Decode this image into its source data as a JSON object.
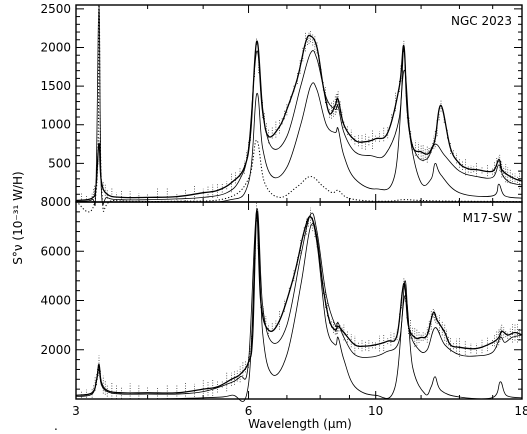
{
  "chart_data": [
    {
      "type": "line",
      "panel": "top",
      "label": "NGC 2023",
      "xscale": "log",
      "xlim": [
        3,
        18
      ],
      "ylim": [
        0,
        2550
      ],
      "yticks": [
        500,
        1000,
        1500,
        2000,
        2500
      ],
      "series": [
        {
          "style": "observed (thick solid)",
          "x": [
            3.0,
            3.2,
            3.25,
            3.29,
            3.32,
            3.4,
            3.6,
            4.0,
            4.5,
            5.0,
            5.3,
            5.6,
            5.9,
            6.05,
            6.2,
            6.35,
            6.5,
            6.8,
            7.0,
            7.3,
            7.55,
            7.7,
            7.9,
            8.1,
            8.3,
            8.5,
            8.6,
            8.8,
            9.2,
            9.6,
            10.0,
            10.5,
            11.0,
            11.2,
            11.35,
            11.6,
            12.0,
            12.3,
            12.5,
            12.7,
            13.0,
            13.5,
            14.0,
            14.5,
            15.0,
            16.0,
            16.4,
            16.6,
            17.0,
            17.5,
            18.0
          ],
          "y": [
            20,
            50,
            200,
            760,
            280,
            100,
            60,
            60,
            70,
            120,
            150,
            250,
            450,
            900,
            2080,
            1200,
            850,
            980,
            1200,
            1600,
            2070,
            2150,
            2000,
            1500,
            1150,
            1250,
            1330,
            1000,
            800,
            780,
            820,
            900,
            1500,
            2020,
            1200,
            720,
            650,
            620,
            680,
            820,
            1250,
            700,
            500,
            430,
            420,
            400,
            550,
            420,
            350,
            300,
            270
          ]
        },
        {
          "style": "model total (thin solid)",
          "x": [
            3.0,
            3.2,
            3.25,
            3.29,
            3.32,
            3.4,
            3.6,
            4.0,
            4.5,
            5.0,
            5.5,
            5.8,
            6.0,
            6.2,
            6.35,
            6.6,
            7.0,
            7.4,
            7.7,
            7.9,
            8.2,
            8.5,
            8.6,
            8.8,
            9.2,
            9.8,
            10.4,
            11.0,
            11.2,
            11.4,
            11.8,
            12.3,
            12.7,
            13.2,
            14.0,
            15.0,
            16.0,
            16.4,
            16.7,
            17.2,
            18.0
          ],
          "y": [
            10,
            30,
            200,
            2550,
            200,
            60,
            30,
            30,
            40,
            60,
            120,
            300,
            700,
            1950,
            1150,
            700,
            850,
            1500,
            1930,
            1850,
            1350,
            1200,
            1240,
            900,
            650,
            600,
            620,
            1100,
            1980,
            1000,
            600,
            560,
            750,
            600,
            400,
            330,
            320,
            480,
            330,
            250,
            220
          ]
        },
        {
          "style": "component (thin solid, lower)",
          "x": [
            3.0,
            3.29,
            3.32,
            3.6,
            4.5,
            5.5,
            6.0,
            6.2,
            6.35,
            6.6,
            7.0,
            7.4,
            7.7,
            7.9,
            8.2,
            8.5,
            8.6,
            8.8,
            9.2,
            10.0,
            10.8,
            11.2,
            11.5,
            12.0,
            12.5,
            12.7,
            13.0,
            14.0,
            16.0,
            16.4,
            16.8,
            18.0
          ],
          "y": [
            0,
            0,
            0,
            0,
            5,
            20,
            250,
            1400,
            700,
            330,
            450,
            1000,
            1500,
            1450,
            1000,
            900,
            950,
            600,
            300,
            170,
            350,
            1700,
            800,
            250,
            300,
            500,
            350,
            120,
            80,
            230,
            80,
            50
          ]
        },
        {
          "style": "component (dotted)",
          "x": [
            3.0,
            3.25,
            3.29,
            3.33,
            3.5,
            4.5,
            5.5,
            6.0,
            6.2,
            6.4,
            6.8,
            7.3,
            7.7,
            8.1,
            8.4,
            8.6,
            8.9,
            9.5,
            10.5,
            11.2,
            12.0,
            14.0,
            18.0
          ],
          "y": [
            0,
            100,
            2550,
            100,
            20,
            10,
            50,
            300,
            800,
            250,
            60,
            200,
            330,
            200,
            120,
            150,
            60,
            20,
            10,
            30,
            20,
            10,
            5
          ]
        }
      ]
    },
    {
      "type": "line",
      "panel": "bottom",
      "label": "M17-SW",
      "xscale": "log",
      "xlim": [
        3,
        18
      ],
      "ylim": [
        0,
        8000
      ],
      "yticks": [
        2000,
        4000,
        6000,
        8000
      ],
      "series": [
        {
          "style": "observed (thick solid)",
          "x": [
            3.0,
            3.2,
            3.26,
            3.29,
            3.32,
            3.4,
            3.6,
            4.0,
            4.5,
            5.0,
            5.3,
            5.6,
            5.8,
            6.0,
            6.1,
            6.2,
            6.3,
            6.5,
            6.8,
            7.2,
            7.5,
            7.7,
            7.9,
            8.1,
            8.3,
            8.5,
            8.6,
            8.8,
            9.2,
            9.6,
            10.0,
            10.5,
            10.9,
            11.2,
            11.4,
            11.7,
            12.0,
            12.3,
            12.6,
            12.8,
            13.2,
            13.5,
            14.0,
            15.0,
            16.0,
            16.4,
            16.6,
            17.0,
            17.5,
            18.0
          ],
          "y": [
            150,
            250,
            800,
            1400,
            700,
            350,
            250,
            250,
            250,
            400,
            500,
            800,
            1000,
            1500,
            2600,
            7600,
            4000,
            2800,
            3200,
            5000,
            6800,
            7400,
            6500,
            4500,
            3200,
            2800,
            2950,
            2700,
            2200,
            2150,
            2200,
            2350,
            2600,
            4700,
            3000,
            2500,
            2500,
            2600,
            3500,
            3200,
            2700,
            2200,
            2100,
            2050,
            2300,
            2500,
            2750,
            2600,
            2700,
            2600
          ]
        },
        {
          "style": "model total (thin solid)",
          "x": [
            3.0,
            3.2,
            3.26,
            3.29,
            3.32,
            3.4,
            3.6,
            4.0,
            4.5,
            5.0,
            5.5,
            5.8,
            6.0,
            6.2,
            6.35,
            6.6,
            7.0,
            7.4,
            7.7,
            7.9,
            8.2,
            8.5,
            8.6,
            8.8,
            9.2,
            9.8,
            10.4,
            11.0,
            11.25,
            11.45,
            11.9,
            12.3,
            12.7,
            13.2,
            14.0,
            15.0,
            16.0,
            16.5,
            16.8,
            17.3,
            18.0
          ],
          "y": [
            100,
            200,
            800,
            1200,
            600,
            300,
            200,
            200,
            200,
            300,
            600,
            900,
            1500,
            7700,
            3800,
            2300,
            3000,
            5800,
            7500,
            6800,
            4200,
            3000,
            3100,
            2500,
            1800,
            1700,
            1900,
            2400,
            4800,
            2800,
            2000,
            2000,
            2900,
            2200,
            1800,
            1750,
            1900,
            2500,
            2300,
            2500,
            2600
          ]
        },
        {
          "style": "component (thin solid, lower)",
          "x": [
            3.0,
            3.3,
            4.0,
            5.0,
            5.6,
            6.0,
            6.2,
            6.35,
            6.6,
            7.0,
            7.4,
            7.7,
            7.9,
            8.2,
            8.5,
            8.6,
            8.8,
            9.2,
            10.0,
            10.8,
            11.25,
            11.6,
            12.2,
            12.5,
            12.7,
            13.0,
            14.0,
            16.0,
            16.5,
            16.9,
            18.0
          ],
          "y": [
            0,
            0,
            0,
            50,
            150,
            600,
            7500,
            2700,
            1000,
            1800,
            4600,
            7000,
            6300,
            3000,
            2200,
            2500,
            1600,
            500,
            150,
            450,
            4200,
            1300,
            200,
            500,
            900,
            350,
            80,
            60,
            700,
            150,
            50
          ]
        }
      ]
    }
  ],
  "axes": {
    "xlabel": "Wavelength (μm)",
    "ylabel": "S°ν (10⁻³¹ W/H)",
    "xticks": [
      3,
      6,
      10,
      18
    ]
  }
}
